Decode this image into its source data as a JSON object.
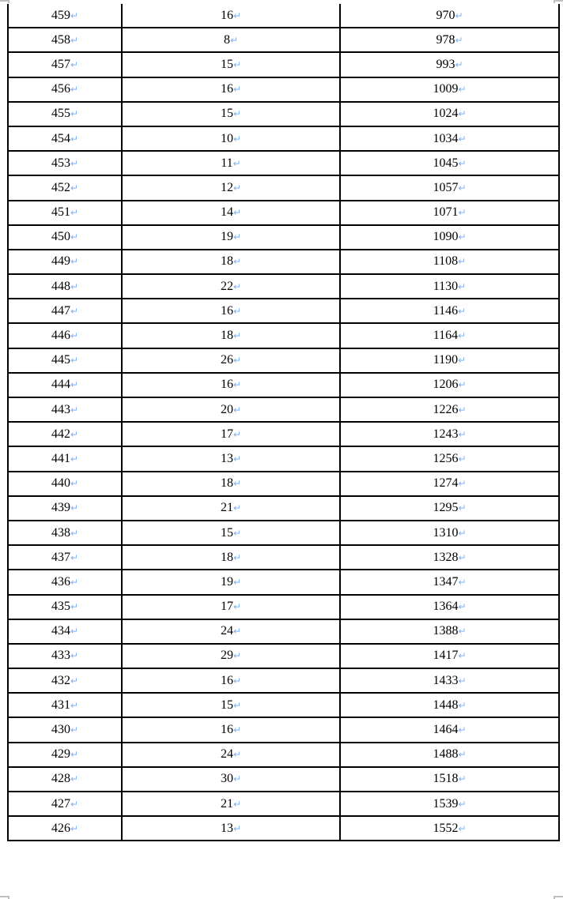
{
  "paragraph_mark": "↵",
  "colors": {
    "paragraph_mark": "#7fb2f0",
    "border": "#000000"
  },
  "rows": [
    [
      "459",
      "16",
      "970"
    ],
    [
      "458",
      "8",
      "978"
    ],
    [
      "457",
      "15",
      "993"
    ],
    [
      "456",
      "16",
      "1009"
    ],
    [
      "455",
      "15",
      "1024"
    ],
    [
      "454",
      "10",
      "1034"
    ],
    [
      "453",
      "11",
      "1045"
    ],
    [
      "452",
      "12",
      "1057"
    ],
    [
      "451",
      "14",
      "1071"
    ],
    [
      "450",
      "19",
      "1090"
    ],
    [
      "449",
      "18",
      "1108"
    ],
    [
      "448",
      "22",
      "1130"
    ],
    [
      "447",
      "16",
      "1146"
    ],
    [
      "446",
      "18",
      "1164"
    ],
    [
      "445",
      "26",
      "1190"
    ],
    [
      "444",
      "16",
      "1206"
    ],
    [
      "443",
      "20",
      "1226"
    ],
    [
      "442",
      "17",
      "1243"
    ],
    [
      "441",
      "13",
      "1256"
    ],
    [
      "440",
      "18",
      "1274"
    ],
    [
      "439",
      "21",
      "1295"
    ],
    [
      "438",
      "15",
      "1310"
    ],
    [
      "437",
      "18",
      "1328"
    ],
    [
      "436",
      "19",
      "1347"
    ],
    [
      "435",
      "17",
      "1364"
    ],
    [
      "434",
      "24",
      "1388"
    ],
    [
      "433",
      "29",
      "1417"
    ],
    [
      "432",
      "16",
      "1433"
    ],
    [
      "431",
      "15",
      "1448"
    ],
    [
      "430",
      "16",
      "1464"
    ],
    [
      "429",
      "24",
      "1488"
    ],
    [
      "428",
      "30",
      "1518"
    ],
    [
      "427",
      "21",
      "1539"
    ],
    [
      "426",
      "13",
      "1552"
    ]
  ]
}
